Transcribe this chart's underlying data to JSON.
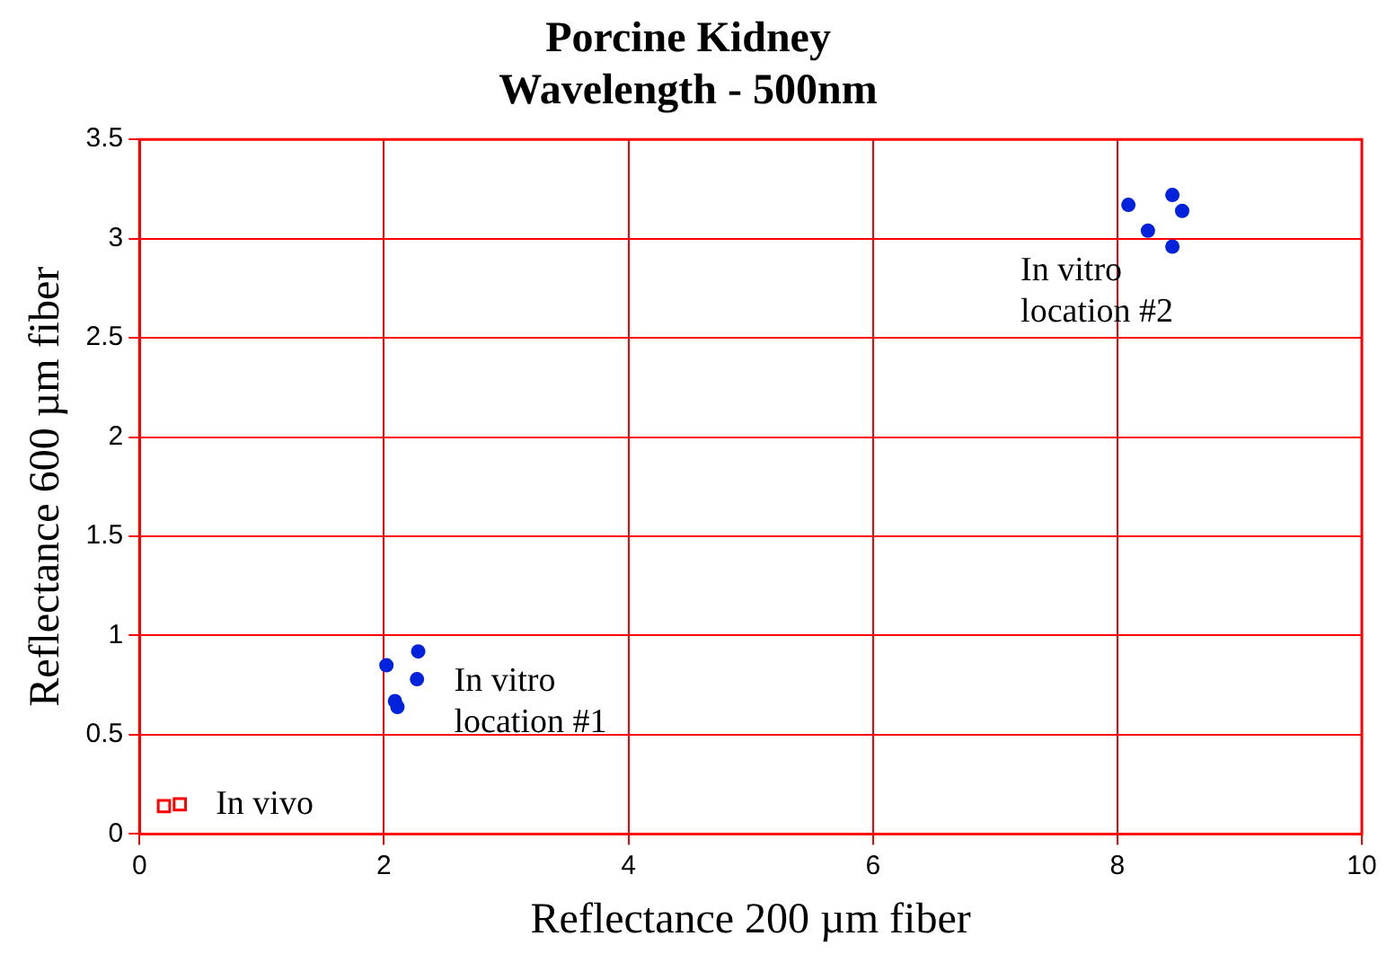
{
  "chart_data": {
    "type": "scatter",
    "title": "Porcine Kidney",
    "subtitle": "Wavelength - 500nm",
    "xlabel": "Reflectance 200 µm fiber",
    "ylabel": "Reflectance 600 µm fiber",
    "series": [
      {
        "color": "#ff0000",
        "marker": "square",
        "x": [
          0.2,
          0.33
        ],
        "values": [
          0.14,
          0.15
        ]
      },
      {
        "color": "#0022dd",
        "marker": "circle",
        "x": [
          2.02,
          2.28,
          2.27,
          2.09,
          2.11
        ],
        "values": [
          0.85,
          0.92,
          0.78,
          0.67,
          0.64
        ]
      },
      {
        "color": "#0022dd",
        "marker": "circle",
        "x": [
          8.09,
          8.45,
          8.53,
          8.25,
          8.45
        ],
        "values": [
          3.17,
          3.22,
          3.14,
          3.04,
          2.96
        ]
      }
    ],
    "xlim": [
      0,
      10
    ],
    "xticks": [
      0,
      2,
      4,
      6,
      8,
      10
    ],
    "ylim": [
      0,
      3.5
    ],
    "yticks": [
      0,
      0.5,
      1,
      1.5,
      2,
      2.5,
      3,
      3.5
    ],
    "grid": true,
    "legend": false,
    "annotations": [
      "In vivo",
      "In vitro\nlocation #1",
      "In vitro\nlocation #2"
    ]
  }
}
